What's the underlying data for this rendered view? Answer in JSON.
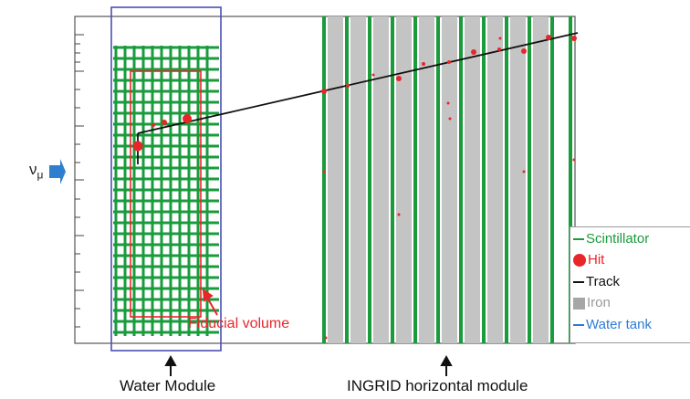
{
  "labels": {
    "nu_main": "ν",
    "nu_sub": "μ",
    "fiducial": "Fiducial volume",
    "water_module": "Water Module",
    "ingrid": "INGRID horizontal module"
  },
  "legend": {
    "scintillator": "Scintillator",
    "hit": "Hit",
    "track": "Track",
    "iron": "Iron",
    "water_tank": "Water tank"
  },
  "colors": {
    "scintillator": "#1a9b3c",
    "hit": "#e8262a",
    "track": "#111111",
    "iron": "#c4c4c4",
    "water_tank": "#2e7bd6",
    "water_box": "#4a4fb0",
    "arrow": "#2f7fcf"
  }
}
